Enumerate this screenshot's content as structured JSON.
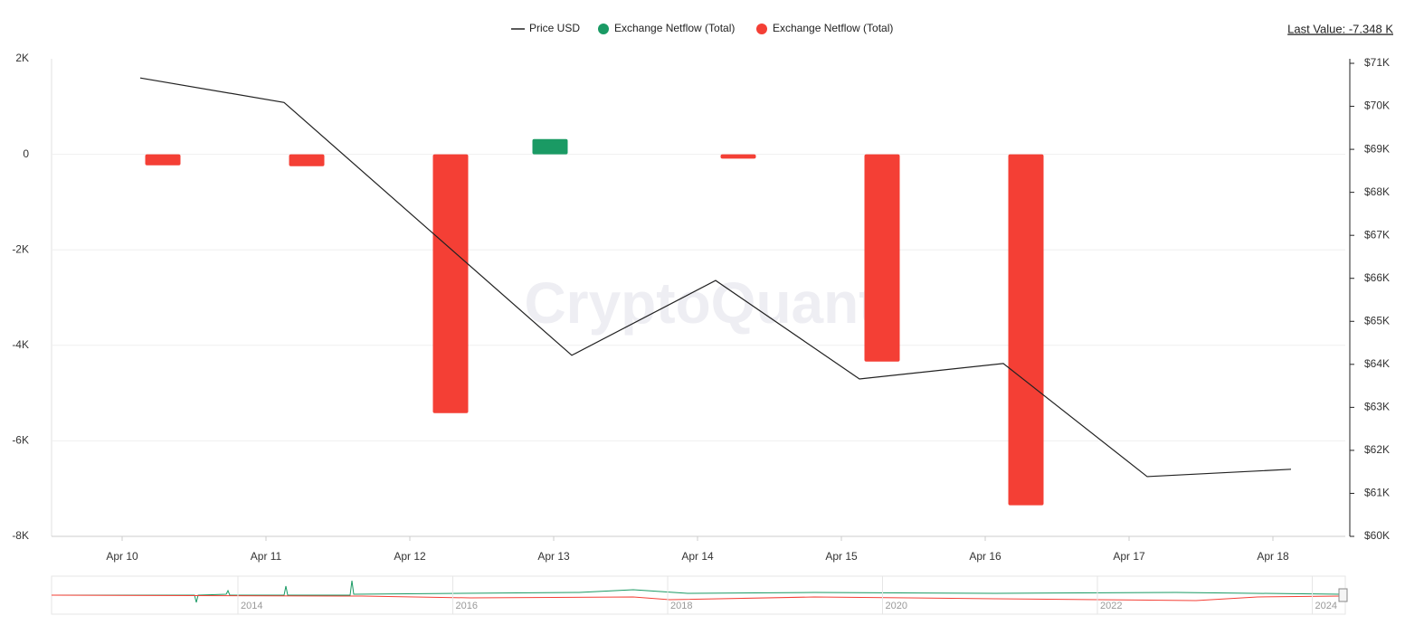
{
  "chart_data": {
    "type": "bar-line",
    "categories": [
      "Apr 10",
      "Apr 11",
      "Apr 12",
      "Apr 13",
      "Apr 14",
      "Apr 15",
      "Apr 16",
      "Apr 17",
      "Apr 18"
    ],
    "series": [
      {
        "name": "Price USD",
        "type": "line",
        "axis": "y2",
        "color": "#222222",
        "values": [
          70660,
          70090,
          67150,
          64210,
          65950,
          63660,
          64020,
          61390,
          61560
        ]
      },
      {
        "name": "Exchange Netflow (Total)",
        "type": "bar",
        "color": "#1a9a64",
        "values": [
          null,
          null,
          null,
          320,
          null,
          null,
          null,
          null,
          null
        ]
      },
      {
        "name": "Exchange Netflow (Total)",
        "type": "bar",
        "color": "#f43f35",
        "values": [
          -230,
          -250,
          -5420,
          null,
          -90,
          -4340,
          -7348,
          null,
          null
        ]
      }
    ],
    "ylim": [
      -8000,
      2000
    ],
    "yticks": [
      {
        "value": 2000,
        "label": "2K"
      },
      {
        "value": 0,
        "label": "0"
      },
      {
        "value": -2000,
        "label": "-2K"
      },
      {
        "value": -4000,
        "label": "-4K"
      },
      {
        "value": -6000,
        "label": "-6K"
      },
      {
        "value": -8000,
        "label": "-8K"
      }
    ],
    "y2lim": [
      60000,
      71000
    ],
    "y2ticks": [
      {
        "value": 71000,
        "label": "$71K"
      },
      {
        "value": 70000,
        "label": "$70K"
      },
      {
        "value": 69000,
        "label": "$69K"
      },
      {
        "value": 68000,
        "label": "$68K"
      },
      {
        "value": 67000,
        "label": "$67K"
      },
      {
        "value": 66000,
        "label": "$66K"
      },
      {
        "value": 65000,
        "label": "$65K"
      },
      {
        "value": 64000,
        "label": "$64K"
      },
      {
        "value": 63000,
        "label": "$63K"
      },
      {
        "value": 62000,
        "label": "$62K"
      },
      {
        "value": 61000,
        "label": "$61K"
      },
      {
        "value": 60000,
        "label": "$60K"
      }
    ],
    "grid": true,
    "last_value": "Last Value: -7.348 K",
    "watermark": "CryptoQuant",
    "navigator_labels": [
      "2014",
      "2016",
      "2018",
      "2020",
      "2022",
      "2024"
    ]
  }
}
